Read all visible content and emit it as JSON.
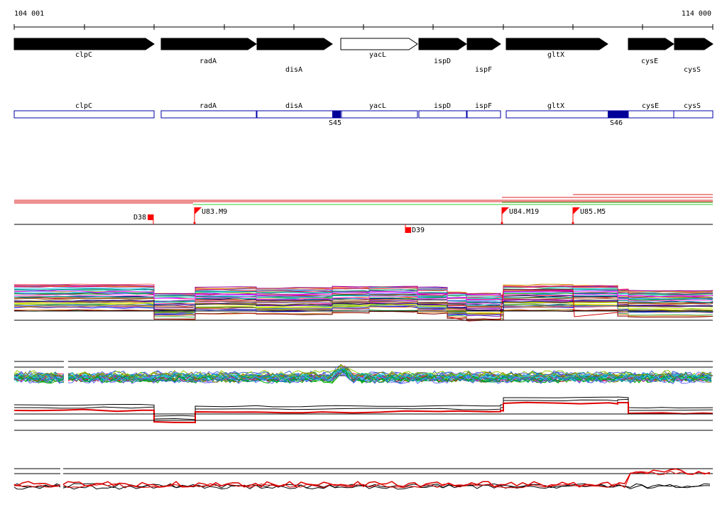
{
  "coordinates": {
    "start": "104 001",
    "end": "114 000"
  },
  "genes": [
    {
      "name": "clpC",
      "strand": "+",
      "filled": true
    },
    {
      "name": "radA",
      "strand": "+",
      "filled": true
    },
    {
      "name": "disA",
      "strand": "+",
      "filled": true
    },
    {
      "name": "yacL",
      "strand": "+",
      "filled": false
    },
    {
      "name": "ispD",
      "strand": "+",
      "filled": true
    },
    {
      "name": "ispF",
      "strand": "+",
      "filled": true
    },
    {
      "name": "gltX",
      "strand": "+",
      "filled": true
    },
    {
      "name": "cysE",
      "strand": "+",
      "filled": true
    },
    {
      "name": "cysS",
      "strand": "+",
      "filled": true
    }
  ],
  "segments": [
    {
      "name": "S45"
    },
    {
      "name": "S46"
    }
  ],
  "transcript_marks": [
    {
      "label": "D38",
      "type": "down"
    },
    {
      "label": "U83.M9",
      "type": "up"
    },
    {
      "label": "D39",
      "type": "down"
    },
    {
      "label": "U84.M19",
      "type": "up"
    },
    {
      "label": "U85.M5",
      "type": "up"
    }
  ],
  "colors": {
    "gene_fill": "#000000",
    "segment_outline": "#0000aa",
    "segment_mark": "#000099",
    "upshift": "#ff0000",
    "green_track": "#33cc33",
    "red_track": "#dd2222"
  }
}
